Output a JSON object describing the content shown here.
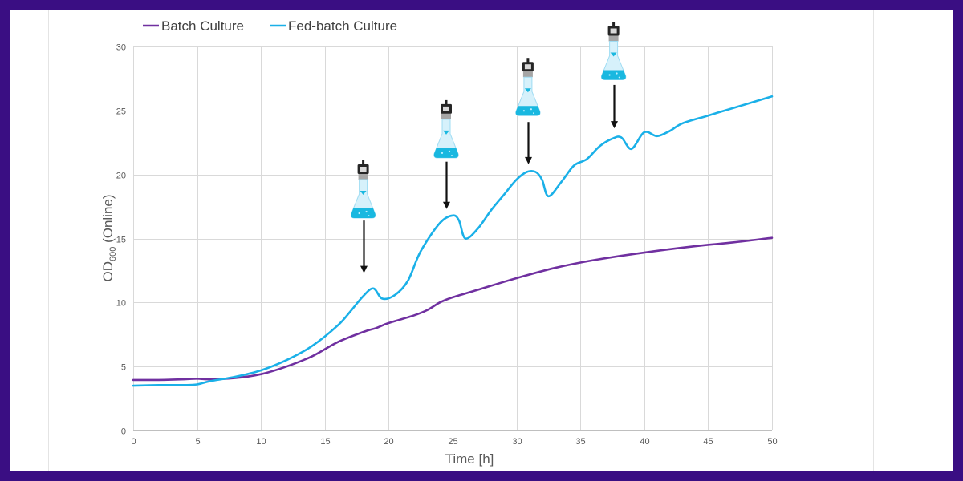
{
  "chart_data": {
    "type": "line",
    "xlabel": "Time [h]",
    "ylabel": {
      "main": "OD",
      "sub": "600",
      "suffix": " (Online)"
    },
    "xlim": [
      0,
      50
    ],
    "ylim": [
      0,
      30
    ],
    "xticks": [
      0,
      5,
      10,
      15,
      20,
      25,
      30,
      35,
      40,
      45,
      50
    ],
    "yticks": [
      0,
      5,
      10,
      15,
      20,
      25,
      30
    ],
    "grid": true,
    "legend_position": "top-left",
    "series": [
      {
        "name": "Batch Culture",
        "color": "#7030a0",
        "x": [
          0,
          2,
          4,
          5,
          6,
          8,
          10,
          12,
          14,
          16,
          18,
          19,
          20,
          22,
          23,
          24,
          25,
          27,
          30,
          33,
          36,
          40,
          44,
          47,
          50
        ],
        "y": [
          3.95,
          3.95,
          4.0,
          4.05,
          4.0,
          4.1,
          4.4,
          5.0,
          5.8,
          6.9,
          7.7,
          8.0,
          8.4,
          9.0,
          9.4,
          10.0,
          10.4,
          11.0,
          11.9,
          12.7,
          13.3,
          13.9,
          14.4,
          14.7,
          15.05
        ]
      },
      {
        "name": "Fed-batch Culture",
        "color": "#1ab0e8",
        "x": [
          0,
          2,
          4,
          5,
          6,
          8,
          10,
          12,
          14,
          16,
          17,
          18,
          18.8,
          19.5,
          20.5,
          21.5,
          22.5,
          24,
          25,
          25.5,
          26,
          27,
          28,
          29,
          30,
          30.8,
          31.5,
          32,
          32.5,
          33.5,
          34.5,
          35.5,
          36.5,
          37.5,
          38.2,
          39,
          40,
          41,
          42,
          43,
          45,
          47,
          50
        ],
        "y": [
          3.5,
          3.55,
          3.55,
          3.6,
          3.85,
          4.2,
          4.7,
          5.5,
          6.6,
          8.2,
          9.3,
          10.5,
          11.1,
          10.3,
          10.6,
          11.7,
          14.0,
          16.2,
          16.8,
          16.4,
          15.0,
          15.8,
          17.2,
          18.4,
          19.6,
          20.2,
          20.2,
          19.6,
          18.3,
          19.4,
          20.7,
          21.2,
          22.2,
          22.8,
          22.9,
          22.0,
          23.3,
          23.0,
          23.4,
          24.0,
          24.6,
          25.2,
          26.1
        ]
      }
    ],
    "annotations": [
      {
        "icon": "feeding-flask-icon",
        "x": 18,
        "arrow_tip_y": 12.3,
        "arrow_top_y": 16.4,
        "icon_y": 16.6
      },
      {
        "icon": "feeding-flask-icon",
        "x": 24.5,
        "arrow_tip_y": 17.3,
        "arrow_top_y": 21.0,
        "icon_y": 21.3
      },
      {
        "icon": "feeding-flask-icon",
        "x": 30.9,
        "arrow_tip_y": 20.8,
        "arrow_top_y": 24.1,
        "icon_y": 24.6
      },
      {
        "icon": "feeding-flask-icon",
        "x": 37.6,
        "arrow_tip_y": 23.6,
        "arrow_top_y": 27.0,
        "icon_y": 27.4
      }
    ]
  }
}
